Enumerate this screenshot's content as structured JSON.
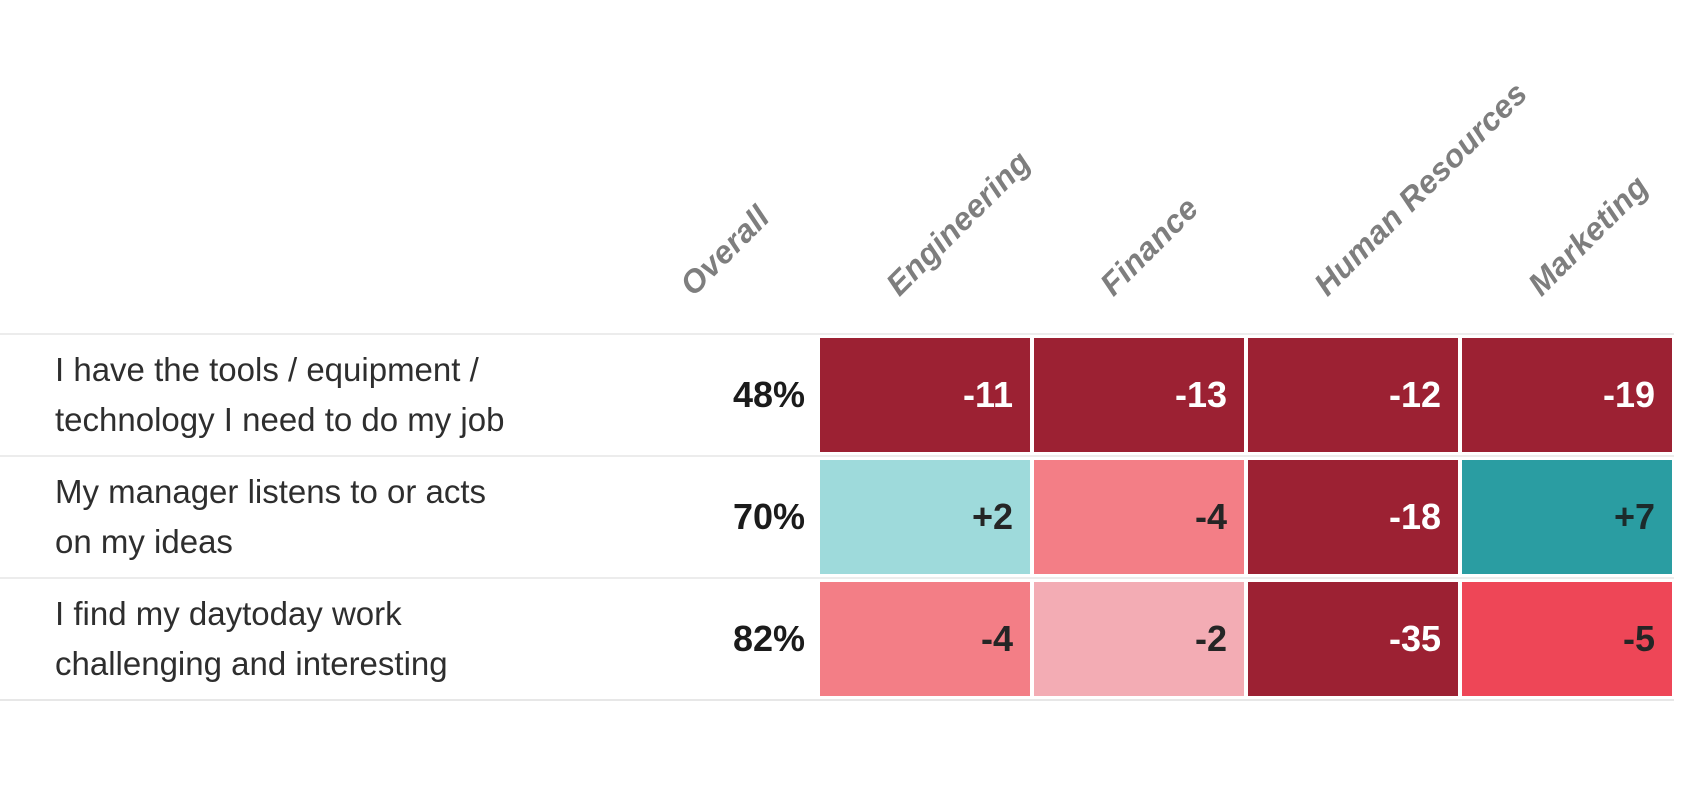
{
  "chart_data": {
    "type": "heatmap",
    "columns": [
      "Overall",
      "Engineering",
      "Finance",
      "Human Resources",
      "Marketing"
    ],
    "header_rotation_deg": 45,
    "legend": "none",
    "grid": "white gaps between cells",
    "rows": [
      {
        "label": "I have the tools / equipment / technology I need to do my job",
        "label_lines": [
          "I have the tools / equipment /",
          "technology I need to do my job"
        ],
        "overall": "48%",
        "cells": [
          {
            "value": -11,
            "display": "-11",
            "bg": "#9C2133",
            "fg": "#FFFFFF"
          },
          {
            "value": -13,
            "display": "-13",
            "bg": "#9C2133",
            "fg": "#FFFFFF"
          },
          {
            "value": -12,
            "display": "-12",
            "bg": "#9C2133",
            "fg": "#FFFFFF"
          },
          {
            "value": -19,
            "display": "-19",
            "bg": "#9C2133",
            "fg": "#FFFFFF"
          }
        ]
      },
      {
        "label": "My manager listens to or acts on my ideas",
        "label_lines": [
          "My manager listens to or acts",
          "on my ideas"
        ],
        "overall": "70%",
        "cells": [
          {
            "value": 2,
            "display": "+2",
            "bg": "#9EDADB",
            "fg": "#252525"
          },
          {
            "value": -4,
            "display": "-4",
            "bg": "#F37E86",
            "fg": "#252525"
          },
          {
            "value": -18,
            "display": "-18",
            "bg": "#9C2133",
            "fg": "#FFFFFF"
          },
          {
            "value": 7,
            "display": "+7",
            "bg": "#2A9DA2",
            "fg": "#1C2B2B"
          }
        ]
      },
      {
        "label": "I find my daytoday work challenging and interesting",
        "label_lines": [
          "I find my daytoday work",
          "challenging and interesting"
        ],
        "overall": "82%",
        "cells": [
          {
            "value": -4,
            "display": "-4",
            "bg": "#F37E86",
            "fg": "#252525"
          },
          {
            "value": -2,
            "display": "-2",
            "bg": "#F3ACB4",
            "fg": "#252525"
          },
          {
            "value": -35,
            "display": "-35",
            "bg": "#9C2133",
            "fg": "#FFFFFF"
          },
          {
            "value": -5,
            "display": "-5",
            "bg": "#EE4657",
            "fg": "#252525"
          }
        ]
      }
    ],
    "colors": {
      "strong_negative": "#9C2133",
      "negative": "#EE4657",
      "mild_negative": "#F37E86",
      "slight_negative": "#F3ACB4",
      "slight_positive": "#9EDADB",
      "positive": "#2A9DA2",
      "header_text": "#7E7E7E",
      "row_label_text": "#2E2E2E",
      "overall_text": "#1B1B1B",
      "row_border": "#ECECEC"
    }
  }
}
